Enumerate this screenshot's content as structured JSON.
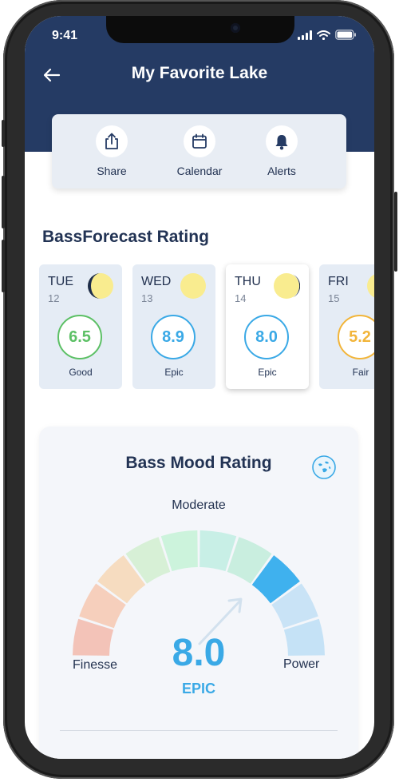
{
  "status": {
    "time": "9:41"
  },
  "nav": {
    "title": "My Favorite Lake"
  },
  "actions": [
    {
      "label": "Share",
      "icon": "share-icon"
    },
    {
      "label": "Calendar",
      "icon": "calendar-icon"
    },
    {
      "label": "Alerts",
      "icon": "bell-icon"
    }
  ],
  "forecast": {
    "title": "BassForecast Rating",
    "days": [
      {
        "day": "TUE",
        "date": "12",
        "rating": "6.5",
        "label": "Good",
        "color": "#5cc065",
        "moon": "waning-crescent"
      },
      {
        "day": "WED",
        "date": "13",
        "rating": "8.9",
        "label": "Epic",
        "color": "#3aa9e6",
        "moon": "full"
      },
      {
        "day": "THU",
        "date": "14",
        "rating": "8.0",
        "label": "Epic",
        "color": "#3aa9e6",
        "moon": "gibbous"
      },
      {
        "day": "FRI",
        "date": "15",
        "rating": "5.2",
        "label": "Fair",
        "color": "#f2b53a",
        "moon": "full"
      }
    ],
    "selected_index": 2
  },
  "mood": {
    "title": "Bass Mood Rating",
    "top_label": "Moderate",
    "left_label": "Finesse",
    "right_label": "Power",
    "value": "8.0",
    "value_word": "EPIC",
    "value_color": "#3aa9e6",
    "active_segment": 7,
    "segment_colors": [
      "#f3c3b8",
      "#f6cfbc",
      "#f6dcc0",
      "#d7f0d6",
      "#ccf3dc",
      "#c8efe6",
      "#c9eedf",
      "#3fb1ee",
      "#c9e3f6",
      "#c5e2f6"
    ]
  }
}
